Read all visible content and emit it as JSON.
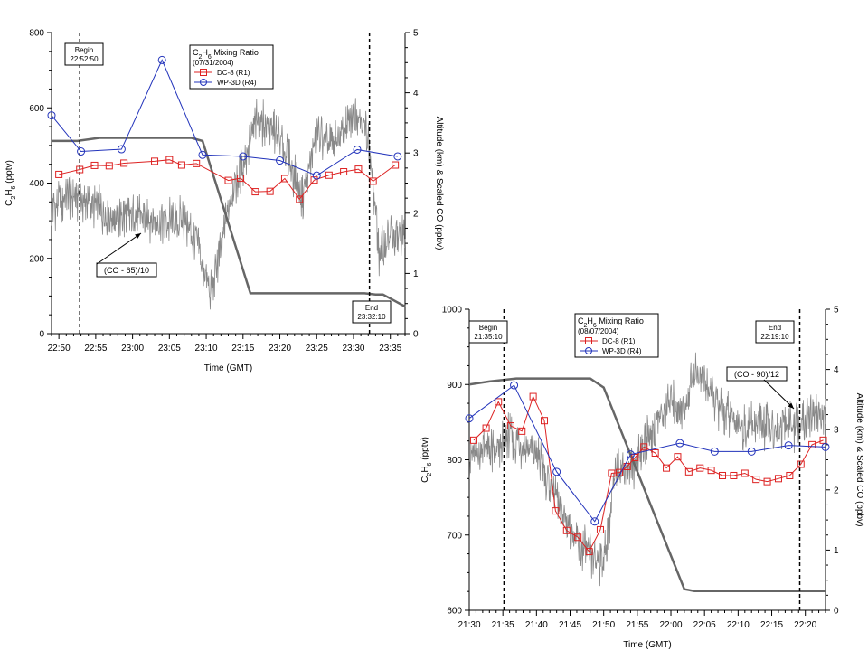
{
  "colors": {
    "dc8": "#dd2222",
    "wp3d": "#2233bb",
    "co": "#888888",
    "alt": "#666666"
  },
  "chart_data": [
    {
      "type": "line",
      "x_unit": "time (GMT)",
      "xlabel": "Time (GMT)",
      "ylabel_left": "C2H6 (pptv)",
      "ylabel_left_parts": [
        "C",
        "2",
        "H",
        "6",
        " (pptv)"
      ],
      "ylabel_right": "Altitude (km) & Scaled CO (ppbv)",
      "xlim": [
        "22:49",
        "23:37"
      ],
      "ylim_left": [
        0,
        800
      ],
      "ylim_right": [
        0,
        5
      ],
      "xticks": [
        "22:50",
        "22:55",
        "23:00",
        "23:05",
        "23:10",
        "23:15",
        "23:20",
        "23:25",
        "23:30",
        "23:35"
      ],
      "yticks_left": [
        "0",
        "200",
        "400",
        "600",
        "800"
      ],
      "yticks_right": [
        "0",
        "1",
        "2",
        "3",
        "4",
        "5"
      ],
      "legend": {
        "title_parts": [
          "C",
          "2",
          "H",
          "6",
          " Mixing Ratio"
        ],
        "date": "(07/31/2004)",
        "entries": [
          "DC-8 (R1)",
          "WP-3D (R4)"
        ],
        "position": "top-center"
      },
      "annotations": [
        {
          "text_lines": [
            "Begin",
            "22:52:50"
          ],
          "x": "22:52:50"
        },
        {
          "text_lines": [
            "End",
            "23:32:10"
          ],
          "x": "23:32:10"
        },
        {
          "text": "(CO - 65)/10"
        }
      ],
      "series": [
        {
          "name": "DC-8 (R1)",
          "axis": "left",
          "x": [
            "22:50:00",
            "22:52:50",
            "22:54:50",
            "22:56:50",
            "22:58:50",
            "23:03:00",
            "23:05:00",
            "23:06:40",
            "23:08:40",
            "23:13:00",
            "23:14:40",
            "23:16:40",
            "23:18:40",
            "23:20:40",
            "23:22:40",
            "23:24:40",
            "23:26:40",
            "23:28:40",
            "23:30:40",
            "23:32:40",
            "23:35:40"
          ],
          "y": [
            423,
            436,
            447,
            446,
            453,
            458,
            462,
            448,
            452,
            407,
            413,
            377,
            378,
            412,
            357,
            408,
            421,
            430,
            437,
            405,
            448
          ]
        },
        {
          "name": "WP-3D (R4)",
          "axis": "left",
          "x": [
            "22:49:00",
            "22:53:00",
            "22:58:30",
            "23:04:00",
            "23:09:30",
            "23:15:00",
            "23:20:00",
            "23:25:00",
            "23:30:30",
            "23:36:00"
          ],
          "y": [
            580,
            484,
            490,
            727,
            475,
            471,
            460,
            420,
            489,
            471
          ]
        },
        {
          "name": "Altitude",
          "axis": "right",
          "x": [
            "22:49:00",
            "22:52:30",
            "22:55:30",
            "23:08:00",
            "23:09:30",
            "23:16:00",
            "23:31:30",
            "23:33:00",
            "23:34:00",
            "23:37:00"
          ],
          "y": [
            3.2,
            3.2,
            3.25,
            3.25,
            3.2,
            0.67,
            0.67,
            0.65,
            0.65,
            0.45
          ]
        },
        {
          "name": "(CO - 65)/10",
          "axis": "right",
          "x": [
            "22:49:00",
            "22:52:00",
            "22:55:00",
            "22:58:00",
            "23:01:00",
            "23:04:00",
            "23:07:00",
            "23:09:00",
            "23:10:30",
            "23:12:00",
            "23:13:30",
            "23:15:00",
            "23:17:00",
            "23:19:00",
            "23:21:00",
            "23:23:00",
            "23:25:00",
            "23:27:00",
            "23:29:00",
            "23:30:30",
            "23:32:00",
            "23:33:30",
            "23:35:00",
            "23:37:00"
          ],
          "y": [
            2.1,
            2.3,
            2.1,
            1.9,
            1.95,
            1.85,
            1.9,
            1.4,
            0.6,
            1.4,
            2.4,
            2.8,
            3.6,
            3.4,
            3.0,
            2.2,
            3.3,
            3.1,
            3.4,
            3.7,
            3.3,
            1.3,
            1.6,
            1.65
          ]
        }
      ]
    },
    {
      "type": "line",
      "x_unit": "time (GMT)",
      "xlabel": "Time (GMT)",
      "ylabel_left": "C2H6 (pptv)",
      "ylabel_left_parts": [
        "C",
        "2",
        "H",
        "6",
        " (pptv)"
      ],
      "ylabel_right": "Altitude (km) & Scaled CO (ppbv)",
      "xlim": [
        "21:30",
        "22:23"
      ],
      "ylim_left": [
        600,
        1000
      ],
      "ylim_right": [
        0,
        5
      ],
      "xticks": [
        "21:30",
        "21:35",
        "21:40",
        "21:45",
        "21:50",
        "21:55",
        "22:00",
        "22:05",
        "22:10",
        "22:15",
        "22:20"
      ],
      "yticks_left": [
        "600",
        "700",
        "800",
        "900",
        "1000"
      ],
      "yticks_right": [
        "0",
        "1",
        "2",
        "3",
        "4",
        "5"
      ],
      "legend": {
        "title_parts": [
          "C",
          "2",
          "H",
          "6",
          " Mixing Ratio"
        ],
        "date": "(08/07/2004)",
        "entries": [
          "DC-8 (R1)",
          "WP-3D (R4)"
        ],
        "position": "top-center"
      },
      "annotations": [
        {
          "text_lines": [
            "Begin",
            "21:35:10"
          ],
          "x": "21:35:10"
        },
        {
          "text_lines": [
            "End",
            "22:19:10"
          ],
          "x": "22:19:10"
        },
        {
          "text": "(CO - 90)/12"
        }
      ],
      "series": [
        {
          "name": "DC-8 (R1)",
          "axis": "left",
          "x": [
            "21:30:40",
            "21:32:30",
            "21:34:20",
            "21:36:10",
            "21:37:50",
            "21:39:30",
            "21:41:10",
            "21:42:50",
            "21:44:30",
            "21:46:10",
            "21:47:50",
            "21:49:30",
            "21:51:10",
            "21:52:20",
            "21:53:30",
            "21:54:40",
            "21:56:00",
            "21:57:40",
            "21:59:20",
            "22:01:00",
            "22:02:40",
            "22:04:20",
            "22:06:00",
            "22:07:40",
            "22:09:20",
            "22:11:00",
            "22:12:40",
            "22:14:20",
            "22:16:00",
            "22:17:40",
            "22:19:20",
            "22:21:00",
            "22:22:40"
          ],
          "y": [
            826,
            842,
            877,
            845,
            838,
            884,
            852,
            732,
            706,
            697,
            678,
            707,
            782,
            783,
            791,
            803,
            817,
            809,
            789,
            804,
            784,
            789,
            786,
            779,
            779,
            782,
            774,
            771,
            775,
            779,
            794,
            820,
            826
          ]
        },
        {
          "name": "WP-3D (R4)",
          "axis": "left",
          "x": [
            "21:30:00",
            "21:36:40",
            "21:43:00",
            "21:48:40",
            "21:54:00",
            "22:01:20",
            "22:06:30",
            "22:12:00",
            "22:17:30",
            "22:23:00"
          ],
          "y": [
            855,
            899,
            784,
            718,
            807,
            822,
            811,
            811,
            819,
            817
          ]
        },
        {
          "name": "Altitude",
          "axis": "right",
          "x": [
            "21:30:00",
            "21:33:00",
            "21:37:00",
            "21:48:00",
            "21:50:00",
            "22:02:00",
            "22:03:30",
            "22:19:00",
            "22:23:00"
          ],
          "y": [
            3.75,
            3.8,
            3.85,
            3.85,
            3.7,
            0.35,
            0.32,
            0.32,
            0.32
          ]
        },
        {
          "name": "(CO - 90)/12",
          "axis": "right",
          "x": [
            "21:30:00",
            "21:32:00",
            "21:34:00",
            "21:36:00",
            "21:38:00",
            "21:40:00",
            "21:42:00",
            "21:44:00",
            "21:46:00",
            "21:48:00",
            "21:50:00",
            "21:52:00",
            "21:54:00",
            "21:56:00",
            "21:58:00",
            "22:00:00",
            "22:02:00",
            "22:03:30",
            "22:05:00",
            "22:07:00",
            "22:09:00",
            "22:11:00",
            "22:13:00",
            "22:15:00",
            "22:17:00",
            "22:19:00",
            "22:21:00",
            "22:23:00"
          ],
          "y": [
            2.5,
            2.7,
            2.6,
            2.9,
            2.7,
            2.6,
            2.1,
            1.6,
            1.1,
            0.9,
            0.8,
            2.4,
            2.3,
            2.8,
            3.1,
            3.5,
            3.3,
            4.0,
            3.8,
            3.4,
            3.2,
            3.0,
            3.1,
            3.0,
            3.1,
            3.0,
            3.3,
            3.2
          ]
        }
      ]
    }
  ]
}
